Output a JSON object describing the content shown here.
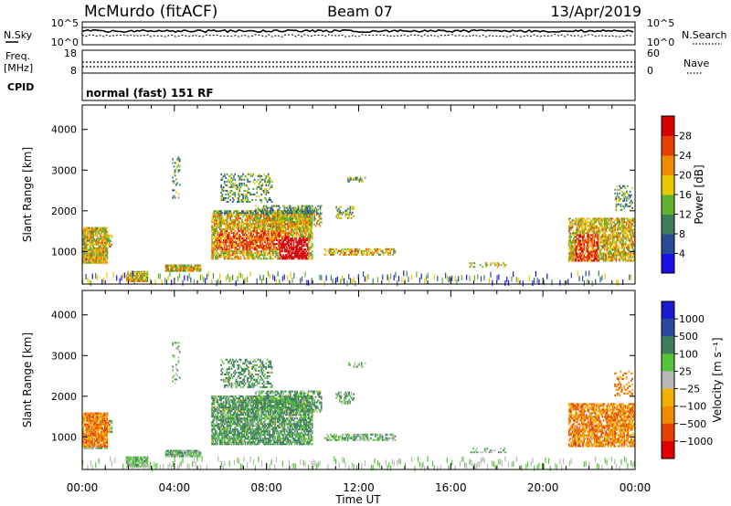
{
  "header": {
    "station": "McMurdo (fitACF)",
    "beam": "Beam 07",
    "date": "13/Apr/2019"
  },
  "strips": {
    "nsky": {
      "label": "N.Sky",
      "ticks": [
        "10^5",
        "10^0"
      ]
    },
    "nsearch": {
      "label": "N.Search",
      "ticks": [
        "10^5",
        "10^0"
      ]
    },
    "freq": {
      "label_top": "Freq.",
      "label_bottom": "[MHz]",
      "ticks": [
        "18",
        "8"
      ]
    },
    "nave": {
      "label": "Nave",
      "ticks": [
        "60",
        "0"
      ]
    },
    "cpid": {
      "label": "CPID",
      "value": "normal (fast) 151 RF"
    }
  },
  "chart_data": [
    {
      "type": "heatmap",
      "name": "power",
      "xlabel": "",
      "ylabel": "Slant Range [km]",
      "y_ticks": [
        1000,
        2000,
        3000,
        4000
      ],
      "ylim": [
        200,
        4600
      ],
      "x_ticks": [
        "00:00",
        "04:00",
        "08:00",
        "12:00",
        "16:00",
        "20:00",
        "00:00"
      ],
      "colorbar": {
        "label": "Power [dB]",
        "ticks": [
          "4",
          "8",
          "12",
          "16",
          "20",
          "24",
          "28"
        ],
        "colors": [
          "#1a10e6",
          "#2a4a9a",
          "#3e7d5a",
          "#5fb12e",
          "#e8c800",
          "#f08a00",
          "#e64000",
          "#d70000"
        ]
      }
    },
    {
      "type": "heatmap",
      "name": "velocity",
      "xlabel": "Time UT",
      "ylabel": "Slant Range [km]",
      "y_ticks": [
        1000,
        2000,
        3000,
        4000
      ],
      "ylim": [
        200,
        4600
      ],
      "x_ticks": [
        "00:00",
        "04:00",
        "08:00",
        "12:00",
        "16:00",
        "20:00",
        "00:00"
      ],
      "colorbar": {
        "label": "Velocity [m s⁻¹]",
        "ticks": [
          "1000",
          "500",
          "100",
          "25",
          "−25",
          "−100",
          "−500",
          "−1000"
        ],
        "colors": [
          "#1a1ad0",
          "#2a4aa0",
          "#3f7e5c",
          "#55c43a",
          "#b8b8b8",
          "#f0b000",
          "#f08a00",
          "#e84000",
          "#e00000"
        ]
      }
    }
  ]
}
